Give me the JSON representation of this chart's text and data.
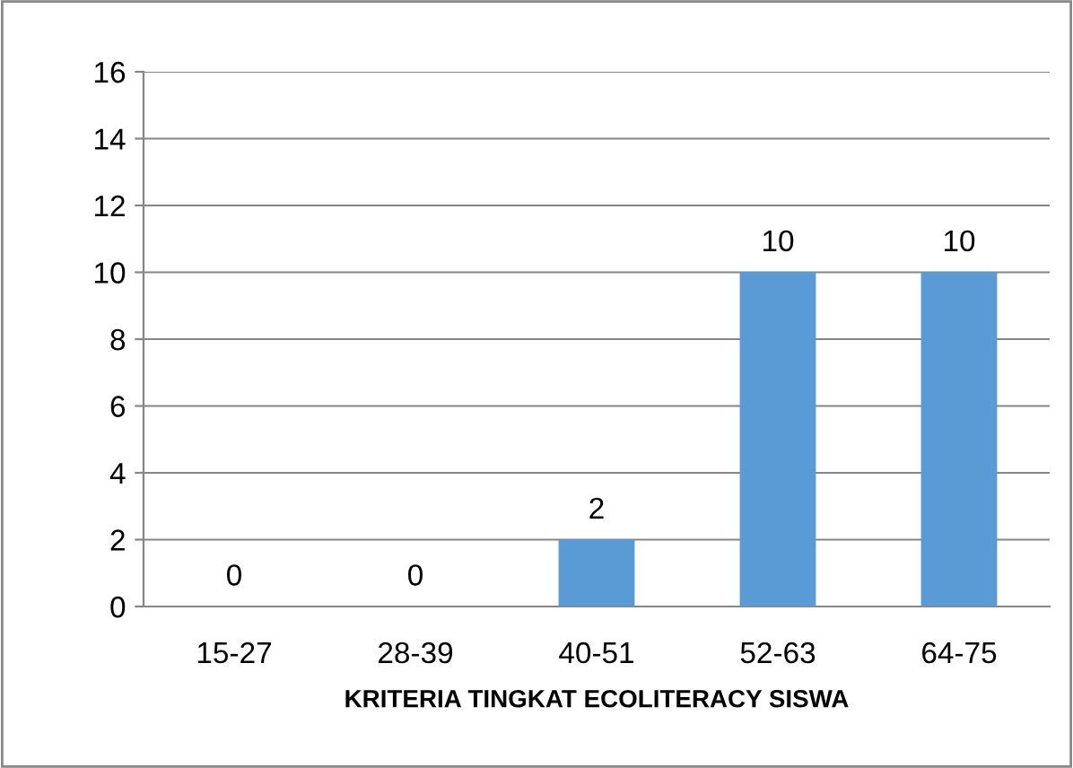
{
  "chart_data": {
    "type": "bar",
    "xlabel": "KRITERIA TINGKAT ECOLITERACY SISWA",
    "categories": [
      "15-27",
      "28-39",
      "40-51",
      "52-63",
      "64-75"
    ],
    "values": [
      0,
      0,
      2,
      10,
      10
    ],
    "color": "#5b9bd5",
    "ylim": [
      0,
      16
    ],
    "yticks": [
      0,
      2,
      4,
      6,
      8,
      10,
      12,
      14,
      16
    ],
    "grid": "y",
    "data_labels": true
  }
}
